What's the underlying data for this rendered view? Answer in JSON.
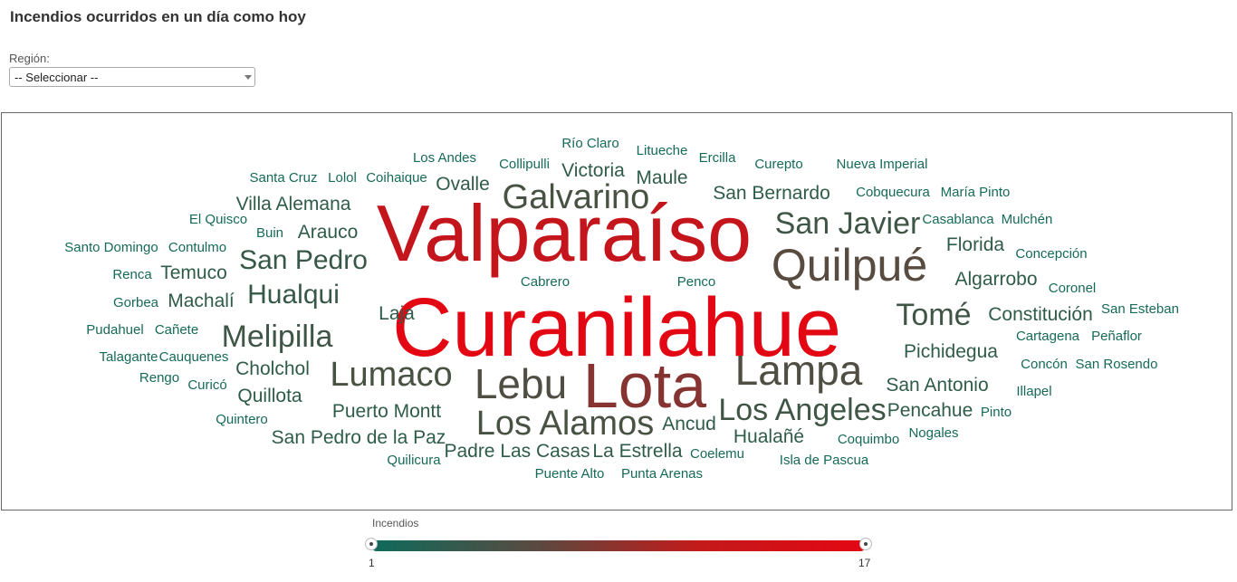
{
  "page": {
    "title": "Incendios ocurridos en un día como hoy"
  },
  "filter": {
    "label": "Región:",
    "selected": "-- Seleccionar --"
  },
  "legend": {
    "title": "Incendios",
    "min": "1",
    "max": "17"
  },
  "colors": {
    "low": "#0e6b5c",
    "mid": "#5a4a40",
    "high": "#e30613"
  },
  "chart_data": {
    "type": "wordcloud",
    "value_range": [
      1,
      17
    ],
    "words": [
      {
        "text": "Curanilahue",
        "value": 17
      },
      {
        "text": "Valparaíso",
        "value": 15
      },
      {
        "text": "Lota",
        "value": 11
      },
      {
        "text": "Quilpué",
        "value": 8
      },
      {
        "text": "Lebu",
        "value": 7
      },
      {
        "text": "Lampa",
        "value": 7
      },
      {
        "text": "Lumaco",
        "value": 6
      },
      {
        "text": "Los Alamos",
        "value": 6
      },
      {
        "text": "Galvarino",
        "value": 6
      },
      {
        "text": "Melipilla",
        "value": 5
      },
      {
        "text": "Tomé",
        "value": 5
      },
      {
        "text": "Los Angeles",
        "value": 5
      },
      {
        "text": "San Javier",
        "value": 5
      },
      {
        "text": "San Pedro",
        "value": 4
      },
      {
        "text": "Hualqui",
        "value": 4
      },
      {
        "text": "San Bernardo",
        "value": 3
      },
      {
        "text": "San Antonio",
        "value": 3
      },
      {
        "text": "Pichidegua",
        "value": 3
      },
      {
        "text": "Constitución",
        "value": 3
      },
      {
        "text": "Puerto Montt",
        "value": 3
      },
      {
        "text": "Villa Alemana",
        "value": 3
      },
      {
        "text": "Victoria",
        "value": 3
      },
      {
        "text": "Ovalle",
        "value": 3
      },
      {
        "text": "Maule",
        "value": 3
      },
      {
        "text": "Arauco",
        "value": 3
      },
      {
        "text": "Temuco",
        "value": 3
      },
      {
        "text": "Machalí",
        "value": 3
      },
      {
        "text": "Florida",
        "value": 3
      },
      {
        "text": "Algarrobo",
        "value": 3
      },
      {
        "text": "Cholchol",
        "value": 3
      },
      {
        "text": "Quillota",
        "value": 3
      },
      {
        "text": "San Pedro de la Paz",
        "value": 3
      },
      {
        "text": "Padre Las Casas",
        "value": 3
      },
      {
        "text": "La Estrella",
        "value": 3
      },
      {
        "text": "Ancud",
        "value": 3
      },
      {
        "text": "Hualañé",
        "value": 3
      },
      {
        "text": "Pencahue",
        "value": 3
      },
      {
        "text": "Laja",
        "value": 3
      },
      {
        "text": "Los Andes",
        "value": 2
      },
      {
        "text": "Collipulli",
        "value": 2
      },
      {
        "text": "Río Claro",
        "value": 2
      },
      {
        "text": "Litueche",
        "value": 2
      },
      {
        "text": "Ercilla",
        "value": 2
      },
      {
        "text": "Curepto",
        "value": 2
      },
      {
        "text": "Nueva Imperial",
        "value": 2
      },
      {
        "text": "Santa Cruz",
        "value": 2
      },
      {
        "text": "Lolol",
        "value": 2
      },
      {
        "text": "Coihaique",
        "value": 2
      },
      {
        "text": "Cobquecura",
        "value": 2
      },
      {
        "text": "María Pinto",
        "value": 2
      },
      {
        "text": "El Quisco",
        "value": 2
      },
      {
        "text": "Buin",
        "value": 2
      },
      {
        "text": "Casablanca",
        "value": 2
      },
      {
        "text": "Mulchén",
        "value": 2
      },
      {
        "text": "Santo Domingo",
        "value": 2
      },
      {
        "text": "Contulmo",
        "value": 2
      },
      {
        "text": "Concepción",
        "value": 2
      },
      {
        "text": "Renca",
        "value": 2
      },
      {
        "text": "Cabrero",
        "value": 2
      },
      {
        "text": "Penco",
        "value": 2
      },
      {
        "text": "Coronel",
        "value": 2
      },
      {
        "text": "Gorbea",
        "value": 2
      },
      {
        "text": "Pudahuel",
        "value": 2
      },
      {
        "text": "Cañete",
        "value": 2
      },
      {
        "text": "San Esteban",
        "value": 2
      },
      {
        "text": "Talagante",
        "value": 2
      },
      {
        "text": "Cauquenes",
        "value": 2
      },
      {
        "text": "Cartagena",
        "value": 2
      },
      {
        "text": "Peñaflor",
        "value": 2
      },
      {
        "text": "Rengo",
        "value": 2
      },
      {
        "text": "Concón",
        "value": 2
      },
      {
        "text": "San Rosendo",
        "value": 2
      },
      {
        "text": "Curicó",
        "value": 2
      },
      {
        "text": "Illapel",
        "value": 2
      },
      {
        "text": "Quintero",
        "value": 2
      },
      {
        "text": "Pinto",
        "value": 2
      },
      {
        "text": "Nogales",
        "value": 2
      },
      {
        "text": "Coquimbo",
        "value": 2
      },
      {
        "text": "Coelemu",
        "value": 2
      },
      {
        "text": "Quilicura",
        "value": 2
      },
      {
        "text": "Isla de Pascua",
        "value": 2
      },
      {
        "text": "Puente Alto",
        "value": 2
      },
      {
        "text": "Punta Arenas",
        "value": 2
      }
    ]
  }
}
